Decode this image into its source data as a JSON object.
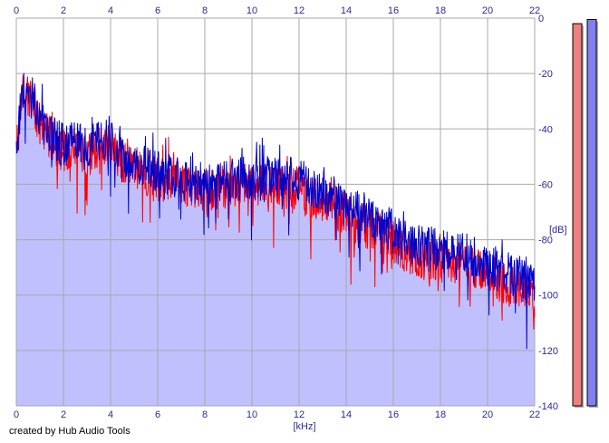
{
  "credit": "created by Hub Audio Tools",
  "colors": {
    "background": "#ffffff",
    "grid": "#a8a8a8",
    "axis_text": "#2a2a9a",
    "area_fill": "#c0c0ff",
    "series_red": "#ff0000",
    "series_blue": "#0000cc",
    "meter_left": "#f08080",
    "meter_right": "#8080f0"
  },
  "chart_data": {
    "type": "line",
    "xlabel": "[kHz]",
    "ylabel": "[dB]",
    "xlim": [
      0,
      22
    ],
    "ylim": [
      -140,
      0
    ],
    "x_ticks": [
      "0",
      "2",
      "4",
      "6",
      "8",
      "10",
      "12",
      "14",
      "16",
      "18",
      "20",
      "22"
    ],
    "y_ticks": [
      "0",
      "-20",
      "-40",
      "-60",
      "-80",
      "-100",
      "-120",
      "-140"
    ],
    "grid": true,
    "x": [
      0,
      0.25,
      0.5,
      0.75,
      1,
      1.5,
      2,
      2.5,
      3,
      3.5,
      4,
      4.5,
      5,
      5.5,
      6,
      6.5,
      7,
      7.5,
      8,
      8.5,
      9,
      9.5,
      10,
      10.5,
      11,
      11.5,
      12,
      12.5,
      13,
      13.5,
      14,
      14.5,
      15,
      15.5,
      16,
      16.5,
      17,
      17.5,
      18,
      18.5,
      19,
      19.5,
      20,
      20.5,
      21,
      21.5,
      22
    ],
    "series": [
      {
        "color": "#0000cc",
        "values": [
          -48,
          -25,
          -27,
          -30,
          -37,
          -42,
          -46,
          -45,
          -48,
          -44,
          -44,
          -50,
          -52,
          -54,
          -56,
          -57,
          -58,
          -59,
          -60,
          -59,
          -59,
          -58,
          -58,
          -58,
          -57,
          -58,
          -58,
          -61,
          -63,
          -65,
          -68,
          -70,
          -72,
          -74,
          -77,
          -80,
          -82,
          -83,
          -84,
          -84,
          -85,
          -87,
          -89,
          -91,
          -93,
          -95,
          -97
        ]
      },
      {
        "color": "#ff0000",
        "values": [
          -50,
          -26,
          -28,
          -32,
          -39,
          -44,
          -48,
          -47,
          -50,
          -47,
          -46,
          -52,
          -54,
          -56,
          -58,
          -59,
          -60,
          -61,
          -62,
          -61,
          -61,
          -60,
          -60,
          -60,
          -60,
          -61,
          -61,
          -64,
          -66,
          -68,
          -71,
          -74,
          -76,
          -78,
          -81,
          -84,
          -86,
          -87,
          -88,
          -88,
          -89,
          -91,
          -93,
          -95,
          -97,
          -99,
          -100
        ]
      }
    ],
    "level_meters": [
      {
        "color": "#f08080",
        "value": -2
      },
      {
        "color": "#8080f0",
        "value": -0.5
      }
    ]
  }
}
